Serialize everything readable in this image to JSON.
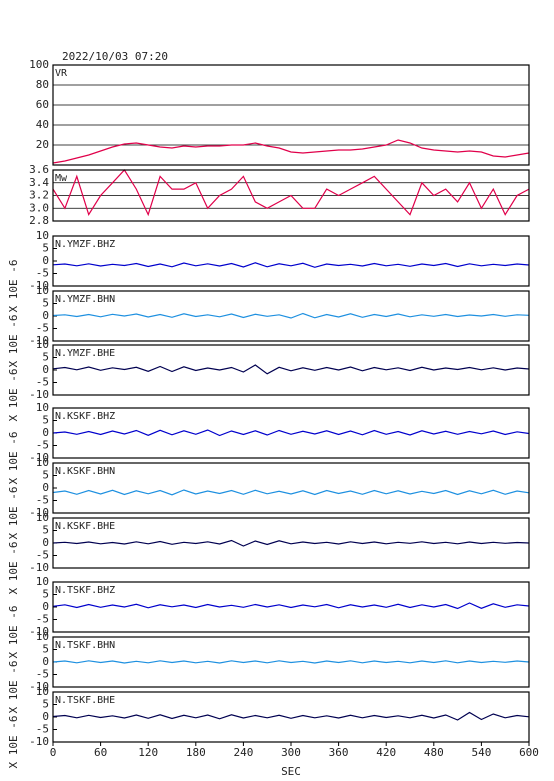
{
  "chart_data": [
    {
      "type": "line",
      "title": "2022/10/03 07:20",
      "annotation": "VR",
      "color": "#e0004a",
      "grid": true,
      "xlim": [
        0,
        600
      ],
      "ylim": [
        0,
        100
      ],
      "yticks": [
        20,
        40,
        60,
        80,
        100
      ],
      "x": [
        0,
        15,
        30,
        45,
        60,
        75,
        90,
        105,
        120,
        135,
        150,
        165,
        180,
        195,
        210,
        225,
        240,
        255,
        270,
        285,
        300,
        315,
        330,
        345,
        360,
        375,
        390,
        405,
        420,
        435,
        450,
        465,
        480,
        495,
        510,
        525,
        540,
        555,
        570,
        585,
        600
      ],
      "values": [
        2,
        4,
        7,
        10,
        14,
        18,
        21,
        22,
        20,
        18,
        17,
        19,
        18,
        19,
        19,
        20,
        20,
        22,
        19,
        17,
        13,
        12,
        13,
        14,
        15,
        15,
        16,
        18,
        20,
        25,
        22,
        17,
        15,
        14,
        13,
        14,
        13,
        9,
        8,
        10,
        12
      ]
    },
    {
      "type": "line",
      "annotation": "Mw",
      "color": "#e0004a",
      "grid": true,
      "xlim": [
        0,
        600
      ],
      "ylim": [
        2.8,
        3.6
      ],
      "yticks": [
        2.8,
        {
          "value": 3,
          "label": "3.0"
        },
        3.2,
        3.4,
        3.6
      ],
      "x": [
        0,
        15,
        30,
        45,
        60,
        75,
        90,
        105,
        120,
        135,
        150,
        165,
        180,
        195,
        210,
        225,
        240,
        255,
        270,
        285,
        300,
        315,
        330,
        345,
        360,
        375,
        390,
        405,
        420,
        435,
        450,
        465,
        480,
        495,
        510,
        525,
        540,
        555,
        570,
        585,
        600
      ],
      "values": [
        3.3,
        3.0,
        3.5,
        2.9,
        3.2,
        3.4,
        3.6,
        3.3,
        2.9,
        3.5,
        3.3,
        3.3,
        3.4,
        3.0,
        3.2,
        3.3,
        3.5,
        3.1,
        3.0,
        3.1,
        3.2,
        3.0,
        3.0,
        3.3,
        3.2,
        3.3,
        3.4,
        3.5,
        3.3,
        3.1,
        2.9,
        3.4,
        3.2,
        3.3,
        3.1,
        3.4,
        3.0,
        3.3,
        2.9,
        3.2,
        3.3
      ]
    },
    {
      "type": "line",
      "annotation": "N.YMZF.BHZ",
      "ylabel": "X 10E -6",
      "color": "#0000cc",
      "grid": false,
      "xlim": [
        0,
        600
      ],
      "ylim": [
        -10,
        10
      ],
      "yticks": [
        -10,
        -5,
        0,
        5,
        10
      ],
      "x": [
        0,
        15,
        30,
        45,
        60,
        75,
        90,
        105,
        120,
        135,
        150,
        165,
        180,
        195,
        210,
        225,
        240,
        255,
        270,
        285,
        300,
        315,
        330,
        345,
        360,
        375,
        390,
        405,
        420,
        435,
        450,
        465,
        480,
        495,
        510,
        525,
        540,
        555,
        570,
        585,
        600
      ],
      "values": [
        -1.5,
        -1.2,
        -1.9,
        -1.1,
        -2.0,
        -1.3,
        -1.8,
        -1.0,
        -2.2,
        -1.2,
        -2.3,
        -0.8,
        -1.9,
        -1.1,
        -2.0,
        -1.0,
        -2.4,
        -0.7,
        -2.3,
        -1.1,
        -1.9,
        -0.9,
        -2.5,
        -1.2,
        -1.8,
        -1.3,
        -2.0,
        -1.0,
        -1.9,
        -1.3,
        -2.1,
        -1.2,
        -1.8,
        -1.0,
        -2.2,
        -1.1,
        -1.9,
        -1.3,
        -1.8,
        -1.2,
        -1.6
      ]
    },
    {
      "type": "line",
      "annotation": "N.YMZF.BHN",
      "ylabel": "X 10E -6",
      "color": "#1e90e0",
      "grid": false,
      "xlim": [
        0,
        600
      ],
      "ylim": [
        -10,
        10
      ],
      "yticks": [
        -10,
        -5,
        0,
        5,
        10
      ],
      "x": [
        0,
        15,
        30,
        45,
        60,
        75,
        90,
        105,
        120,
        135,
        150,
        165,
        180,
        195,
        210,
        225,
        240,
        255,
        270,
        285,
        300,
        315,
        330,
        345,
        360,
        375,
        390,
        405,
        420,
        435,
        450,
        465,
        480,
        495,
        510,
        525,
        540,
        555,
        570,
        585,
        600
      ],
      "values": [
        0.2,
        0.5,
        -0.2,
        0.6,
        -0.3,
        0.7,
        0.0,
        0.8,
        -0.4,
        0.6,
        -0.5,
        0.9,
        -0.2,
        0.5,
        -0.3,
        0.8,
        -0.6,
        0.7,
        -0.1,
        0.5,
        -0.8,
        1.0,
        -0.7,
        0.6,
        -0.4,
        0.9,
        -0.5,
        0.6,
        -0.2,
        0.8,
        -0.3,
        0.5,
        -0.1,
        0.6,
        -0.2,
        0.4,
        0.0,
        0.6,
        -0.1,
        0.5,
        0.3
      ]
    },
    {
      "type": "line",
      "annotation": "N.YMZF.BHE",
      "ylabel": "X 10E -6",
      "color": "#000050",
      "grid": false,
      "xlim": [
        0,
        600
      ],
      "ylim": [
        -10,
        10
      ],
      "yticks": [
        -10,
        -5,
        0,
        5,
        10
      ],
      "x": [
        0,
        15,
        30,
        45,
        60,
        75,
        90,
        105,
        120,
        135,
        150,
        165,
        180,
        195,
        210,
        225,
        240,
        255,
        270,
        285,
        300,
        315,
        330,
        345,
        360,
        375,
        390,
        405,
        420,
        435,
        450,
        465,
        480,
        495,
        510,
        525,
        540,
        555,
        570,
        585,
        600
      ],
      "values": [
        0.5,
        1.0,
        0.1,
        1.2,
        -0.1,
        0.9,
        0.2,
        1.1,
        -0.5,
        1.4,
        -0.6,
        1.3,
        -0.2,
        0.8,
        0.0,
        1.0,
        -0.8,
        2.0,
        -1.5,
        1.1,
        -0.3,
        0.9,
        -0.1,
        1.0,
        0.0,
        1.2,
        -0.3,
        1.0,
        0.1,
        0.9,
        -0.2,
        1.1,
        0.0,
        0.8,
        0.2,
        1.0,
        0.1,
        0.9,
        0.0,
        0.8,
        0.4
      ]
    },
    {
      "type": "line",
      "annotation": "N.KSKF.BHZ",
      "ylabel": "X 10E -6",
      "color": "#0000cc",
      "grid": false,
      "xlim": [
        0,
        600
      ],
      "ylim": [
        -10,
        10
      ],
      "yticks": [
        -10,
        -5,
        0,
        5,
        10
      ],
      "x": [
        0,
        15,
        30,
        45,
        60,
        75,
        90,
        105,
        120,
        135,
        150,
        165,
        180,
        195,
        210,
        225,
        240,
        255,
        270,
        285,
        300,
        315,
        330,
        345,
        360,
        375,
        390,
        405,
        420,
        435,
        450,
        465,
        480,
        495,
        510,
        525,
        540,
        555,
        570,
        585,
        600
      ],
      "values": [
        0.0,
        0.4,
        -0.5,
        0.6,
        -0.6,
        0.8,
        -0.4,
        1.0,
        -0.9,
        1.1,
        -0.7,
        0.9,
        -0.5,
        1.2,
        -1.0,
        0.8,
        -0.6,
        0.9,
        -0.8,
        1.0,
        -0.5,
        0.7,
        -0.4,
        0.9,
        -0.6,
        0.8,
        -0.7,
        1.0,
        -0.5,
        0.6,
        -0.8,
        0.9,
        -0.4,
        0.7,
        -0.5,
        0.6,
        -0.3,
        0.8,
        -0.6,
        0.5,
        -0.2
      ]
    },
    {
      "type": "line",
      "annotation": "N.KSKF.BHN",
      "ylabel": "X 10E -6",
      "color": "#1e90e0",
      "grid": false,
      "xlim": [
        0,
        600
      ],
      "ylim": [
        -10,
        10
      ],
      "yticks": [
        -10,
        -5,
        0,
        5,
        10
      ],
      "x": [
        0,
        15,
        30,
        45,
        60,
        75,
        90,
        105,
        120,
        135,
        150,
        165,
        180,
        195,
        210,
        225,
        240,
        255,
        270,
        285,
        300,
        315,
        330,
        345,
        360,
        375,
        390,
        405,
        420,
        435,
        450,
        465,
        480,
        495,
        510,
        525,
        540,
        555,
        570,
        585,
        600
      ],
      "values": [
        -1.8,
        -1.2,
        -2.5,
        -1.0,
        -2.4,
        -0.9,
        -2.6,
        -1.1,
        -2.3,
        -1.0,
        -2.7,
        -0.8,
        -2.4,
        -1.2,
        -2.2,
        -1.0,
        -2.5,
        -0.9,
        -2.3,
        -1.3,
        -2.4,
        -1.1,
        -2.6,
        -1.0,
        -2.2,
        -1.2,
        -2.5,
        -1.0,
        -2.3,
        -1.1,
        -2.4,
        -1.3,
        -2.2,
        -1.0,
        -2.6,
        -1.1,
        -2.3,
        -0.9,
        -2.5,
        -1.2,
        -1.9
      ]
    },
    {
      "type": "line",
      "annotation": "N.KSKF.BHE",
      "ylabel": "X 10E -6",
      "color": "#000050",
      "grid": false,
      "xlim": [
        0,
        600
      ],
      "ylim": [
        -10,
        10
      ],
      "yticks": [
        -10,
        -5,
        0,
        5,
        10
      ],
      "x": [
        0,
        15,
        30,
        45,
        60,
        75,
        90,
        105,
        120,
        135,
        150,
        165,
        180,
        195,
        210,
        225,
        240,
        255,
        270,
        285,
        300,
        315,
        330,
        345,
        360,
        375,
        390,
        405,
        420,
        435,
        450,
        465,
        480,
        495,
        510,
        525,
        540,
        555,
        570,
        585,
        600
      ],
      "values": [
        0.0,
        0.3,
        -0.2,
        0.4,
        -0.3,
        0.2,
        -0.4,
        0.5,
        -0.3,
        0.6,
        -0.5,
        0.3,
        -0.2,
        0.5,
        -0.4,
        1.0,
        -1.2,
        0.8,
        -0.6,
        0.9,
        -0.3,
        0.4,
        -0.2,
        0.3,
        -0.4,
        0.5,
        -0.2,
        0.4,
        -0.3,
        0.3,
        -0.1,
        0.5,
        -0.2,
        0.3,
        -0.3,
        0.4,
        -0.2,
        0.3,
        -0.1,
        0.2,
        0.0
      ]
    },
    {
      "type": "line",
      "annotation": "N.TSKF.BHZ",
      "ylabel": "X 10E -6",
      "color": "#0000cc",
      "grid": false,
      "xlim": [
        0,
        600
      ],
      "ylim": [
        -10,
        10
      ],
      "yticks": [
        -10,
        -5,
        0,
        5,
        10
      ],
      "x": [
        0,
        15,
        30,
        45,
        60,
        75,
        90,
        105,
        120,
        135,
        150,
        165,
        180,
        195,
        210,
        225,
        240,
        255,
        270,
        285,
        300,
        315,
        330,
        345,
        360,
        375,
        390,
        405,
        420,
        435,
        450,
        465,
        480,
        495,
        510,
        525,
        540,
        555,
        570,
        585,
        600
      ],
      "values": [
        0.3,
        0.9,
        -0.2,
        1.0,
        -0.1,
        0.8,
        0.0,
        1.1,
        -0.3,
        0.9,
        0.1,
        0.8,
        -0.2,
        1.0,
        0.0,
        0.7,
        -0.1,
        1.0,
        0.0,
        0.9,
        -0.2,
        0.8,
        0.1,
        1.0,
        -0.3,
        0.9,
        0.0,
        0.8,
        -0.1,
        1.1,
        -0.2,
        0.9,
        0.0,
        1.0,
        -0.6,
        1.6,
        -0.5,
        1.3,
        -0.1,
        0.9,
        0.4
      ]
    },
    {
      "type": "line",
      "annotation": "N.TSKF.BHN",
      "ylabel": "X 10E -6",
      "color": "#1e90e0",
      "grid": false,
      "xlim": [
        0,
        600
      ],
      "ylim": [
        -10,
        10
      ],
      "yticks": [
        -10,
        -5,
        0,
        5,
        10
      ],
      "x": [
        0,
        15,
        30,
        45,
        60,
        75,
        90,
        105,
        120,
        135,
        150,
        165,
        180,
        195,
        210,
        225,
        240,
        255,
        270,
        285,
        300,
        315,
        330,
        345,
        360,
        375,
        390,
        405,
        420,
        435,
        450,
        465,
        480,
        495,
        510,
        525,
        540,
        555,
        570,
        585,
        600
      ],
      "values": [
        0.0,
        0.4,
        -0.3,
        0.5,
        -0.2,
        0.4,
        -0.4,
        0.3,
        -0.3,
        0.5,
        -0.2,
        0.4,
        -0.3,
        0.3,
        -0.4,
        0.5,
        -0.2,
        0.4,
        -0.3,
        0.5,
        -0.2,
        0.3,
        -0.4,
        0.4,
        -0.2,
        0.5,
        -0.3,
        0.4,
        -0.2,
        0.3,
        -0.3,
        0.4,
        -0.2,
        0.5,
        -0.3,
        0.4,
        -0.2,
        0.3,
        -0.1,
        0.4,
        0.0
      ]
    },
    {
      "type": "line",
      "annotation": "N.TSKF.BHE",
      "ylabel": "X 10E -6",
      "color": "#000050",
      "grid": false,
      "xlim": [
        0,
        600
      ],
      "ylim": [
        -10,
        10
      ],
      "yticks": [
        -10,
        -5,
        0,
        5,
        10
      ],
      "x": [
        0,
        15,
        30,
        45,
        60,
        75,
        90,
        105,
        120,
        135,
        150,
        165,
        180,
        195,
        210,
        225,
        240,
        255,
        270,
        285,
        300,
        315,
        330,
        345,
        360,
        375,
        390,
        405,
        420,
        435,
        450,
        465,
        480,
        495,
        510,
        525,
        540,
        555,
        570,
        585,
        600
      ],
      "values": [
        0.2,
        0.6,
        -0.3,
        0.7,
        -0.2,
        0.5,
        -0.4,
        0.8,
        -0.5,
        0.9,
        -0.6,
        0.7,
        -0.3,
        0.8,
        -0.7,
        0.9,
        -0.4,
        0.6,
        -0.3,
        0.7,
        -0.5,
        0.6,
        -0.3,
        0.5,
        -0.4,
        0.7,
        -0.3,
        0.6,
        -0.2,
        0.5,
        -0.3,
        0.7,
        -0.4,
        0.8,
        -1.2,
        1.8,
        -1.0,
        1.2,
        -0.3,
        0.6,
        0.1
      ],
      "xticks": [
        0,
        60,
        120,
        180,
        240,
        300,
        360,
        420,
        480,
        540,
        600
      ],
      "xlabel": "SEC"
    }
  ]
}
